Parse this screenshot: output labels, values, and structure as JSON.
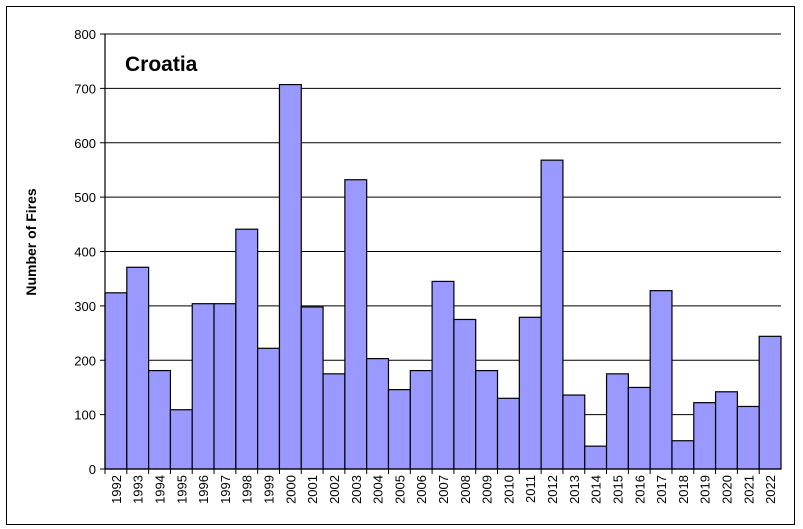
{
  "chart_data": {
    "type": "bar",
    "title": "Croatia",
    "xlabel": "",
    "ylabel": "Number of Fires",
    "ylim": [
      0,
      800
    ],
    "yticks": [
      0,
      100,
      200,
      300,
      400,
      500,
      600,
      700,
      800
    ],
    "grid": true,
    "legend": "none",
    "categories": [
      "1992",
      "1993",
      "1994",
      "1995",
      "1996",
      "1997",
      "1998",
      "1999",
      "2000",
      "2001",
      "2002",
      "2003",
      "2004",
      "2005",
      "2006",
      "2007",
      "2008",
      "2009",
      "2010",
      "2011",
      "2012",
      "2013",
      "2014",
      "2015",
      "2016",
      "2017",
      "2018",
      "2019",
      "2020",
      "2021",
      "2022"
    ],
    "values": [
      324,
      371,
      181,
      109,
      304,
      304,
      441,
      222,
      707,
      298,
      175,
      532,
      203,
      146,
      181,
      345,
      275,
      181,
      130,
      279,
      568,
      136,
      42,
      175,
      150,
      328,
      52,
      122,
      142,
      115,
      244
    ],
    "colors": {
      "bar_fill": "#9999ff",
      "bar_stroke": "#000000",
      "plot_background": "#ffffff",
      "gridline": "#000000"
    }
  }
}
